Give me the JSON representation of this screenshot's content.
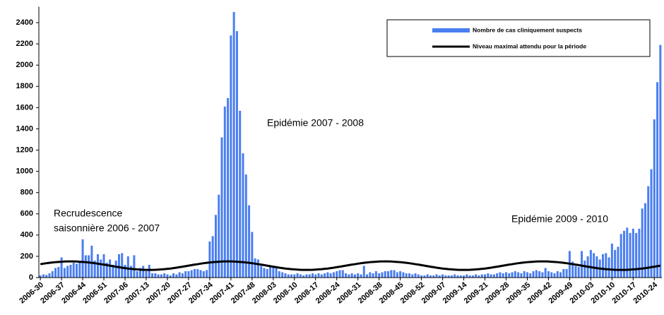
{
  "chart_data": {
    "type": "bar",
    "annotations": [
      [
        "Epidémie 2007 - 2008"
      ],
      [
        "Recrudescence",
        "saisonnière 2006 - 2007"
      ],
      [
        "Epidémie 2009 - 2010"
      ]
    ],
    "categories": [
      "2006-30",
      null,
      null,
      null,
      null,
      null,
      null,
      "2006-37",
      null,
      null,
      null,
      null,
      null,
      null,
      "2006-44",
      null,
      null,
      null,
      null,
      null,
      null,
      "2006-51",
      null,
      null,
      null,
      null,
      null,
      null,
      "2007-06",
      null,
      null,
      null,
      null,
      null,
      null,
      "2007-13",
      null,
      null,
      null,
      null,
      null,
      null,
      "2007-20",
      null,
      null,
      null,
      null,
      null,
      null,
      "2007-27",
      null,
      null,
      null,
      null,
      null,
      null,
      "2007-34",
      null,
      null,
      null,
      null,
      null,
      null,
      "2007-41",
      null,
      null,
      null,
      null,
      null,
      null,
      "2007-48",
      null,
      null,
      null,
      null,
      null,
      null,
      "2008-03",
      null,
      null,
      null,
      null,
      null,
      null,
      "2008-10",
      null,
      null,
      null,
      null,
      null,
      null,
      "2008-17",
      null,
      null,
      null,
      null,
      null,
      null,
      "2008-24",
      null,
      null,
      null,
      null,
      null,
      null,
      "2008-31",
      null,
      null,
      null,
      null,
      null,
      null,
      "2008-38",
      null,
      null,
      null,
      null,
      null,
      null,
      "2008-45",
      null,
      null,
      null,
      null,
      null,
      null,
      "2008-52",
      null,
      null,
      null,
      null,
      null,
      null,
      "2009-07",
      null,
      null,
      null,
      null,
      null,
      null,
      "2009-14",
      null,
      null,
      null,
      null,
      null,
      null,
      "2009-21",
      null,
      null,
      null,
      null,
      null,
      null,
      "2009-28",
      null,
      null,
      null,
      null,
      null,
      null,
      "2009-35",
      null,
      null,
      null,
      null,
      null,
      null,
      "2009-42",
      null,
      null,
      null,
      null,
      null,
      null,
      "2009-49",
      null,
      null,
      null,
      null,
      null,
      null,
      "2010-03",
      null,
      null,
      null,
      null,
      null,
      null,
      "2010-10",
      null,
      null,
      null,
      null,
      null,
      null,
      "2010-17",
      null,
      null,
      null,
      null,
      null,
      null,
      "2010-24",
      null,
      null
    ],
    "series": [
      {
        "name": "Nombre de cas cliniquement suspects",
        "type": "bar",
        "color": "#4a7ef0",
        "values": [
          20,
          30,
          25,
          40,
          60,
          90,
          100,
          190,
          90,
          110,
          120,
          140,
          130,
          150,
          360,
          210,
          210,
          300,
          160,
          220,
          170,
          220,
          140,
          170,
          120,
          160,
          220,
          230,
          120,
          200,
          110,
          210,
          60,
          90,
          110,
          60,
          120,
          40,
          40,
          30,
          30,
          40,
          30,
          20,
          40,
          30,
          50,
          40,
          60,
          60,
          70,
          80,
          80,
          70,
          60,
          70,
          340,
          390,
          590,
          780,
          1320,
          1610,
          1690,
          2280,
          2500,
          2320,
          1570,
          1170,
          970,
          680,
          430,
          180,
          170,
          110,
          90,
          80,
          100,
          110,
          90,
          60,
          50,
          40,
          30,
          30,
          30,
          40,
          30,
          20,
          30,
          30,
          40,
          30,
          40,
          30,
          40,
          50,
          40,
          50,
          60,
          70,
          70,
          40,
          30,
          40,
          30,
          40,
          30,
          110,
          30,
          50,
          40,
          60,
          40,
          50,
          60,
          60,
          70,
          70,
          50,
          60,
          50,
          40,
          40,
          30,
          40,
          30,
          20,
          20,
          30,
          20,
          20,
          30,
          20,
          30,
          20,
          20,
          20,
          30,
          20,
          20,
          20,
          30,
          20,
          20,
          30,
          20,
          30,
          30,
          40,
          30,
          30,
          40,
          50,
          40,
          50,
          40,
          50,
          60,
          50,
          40,
          60,
          50,
          40,
          60,
          70,
          60,
          50,
          90,
          60,
          50,
          40,
          60,
          50,
          80,
          80,
          250,
          150,
          110,
          100,
          250,
          160,
          200,
          260,
          230,
          200,
          170,
          220,
          230,
          190,
          320,
          260,
          290,
          410,
          440,
          470,
          420,
          460,
          420,
          460,
          650,
          700,
          860,
          1020,
          1490,
          1840,
          2190
        ]
      },
      {
        "name": "Niveau maximal attendu pour la période",
        "type": "line",
        "color": "#000000",
        "values": [
          126,
          131,
          135,
          139,
          142,
          145,
          147,
          149,
          151,
          152,
          152,
          152,
          151,
          149,
          147,
          145,
          142,
          139,
          135,
          131,
          126,
          122,
          117,
          112,
          107,
          102,
          98,
          93,
          89,
          85,
          82,
          79,
          77,
          75,
          73,
          72,
          72,
          72,
          73,
          75,
          77,
          79,
          82,
          85,
          89,
          93,
          98,
          102,
          107,
          112,
          117,
          122,
          126,
          131,
          135,
          139,
          142,
          145,
          147,
          149,
          151,
          152,
          152,
          152,
          151,
          149,
          147,
          145,
          142,
          139,
          135,
          131,
          126,
          122,
          117,
          112,
          107,
          102,
          98,
          93,
          89,
          85,
          82,
          79,
          77,
          75,
          73,
          72,
          72,
          72,
          73,
          75,
          77,
          79,
          82,
          85,
          89,
          93,
          98,
          102,
          107,
          112,
          117,
          122,
          126,
          131,
          135,
          139,
          142,
          145,
          147,
          149,
          151,
          152,
          152,
          152,
          151,
          149,
          147,
          145,
          142,
          139,
          135,
          131,
          126,
          122,
          117,
          112,
          107,
          102,
          98,
          93,
          89,
          85,
          82,
          79,
          77,
          75,
          73,
          72,
          72,
          72,
          73,
          75,
          77,
          79,
          82,
          85,
          89,
          93,
          98,
          102,
          107,
          112,
          117,
          122,
          126,
          131,
          135,
          139,
          142,
          145,
          147,
          149,
          151,
          152,
          152,
          152,
          151,
          149,
          147,
          145,
          142,
          139,
          135,
          131,
          126,
          122,
          117,
          112,
          107,
          102,
          98,
          93,
          89,
          85,
          82,
          79,
          77,
          75,
          73,
          72,
          72,
          72,
          73,
          75,
          77,
          79,
          82,
          85,
          89,
          93,
          98,
          102,
          107,
          112
        ]
      }
    ],
    "ylim": [
      0,
      2550
    ],
    "yticks": [
      0,
      200,
      400,
      600,
      800,
      1000,
      1200,
      1400,
      1600,
      1800,
      2000,
      2200,
      2400
    ],
    "grid": false
  }
}
